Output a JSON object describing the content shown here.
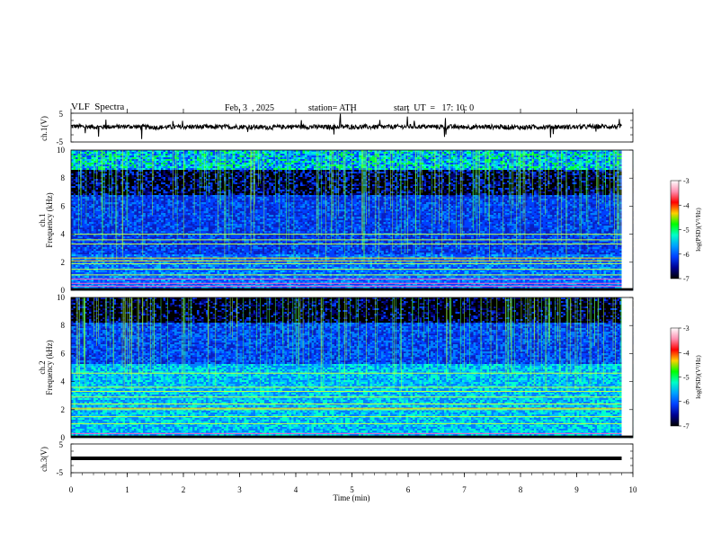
{
  "header": {
    "title": "VLF  Spectra",
    "date": "Feb. 3  , 2025",
    "station": "station= ATH",
    "start_time": "start  UT  =   17: 10: 0"
  },
  "colorbar": {
    "label": "log(PSD)(V²/Hz)",
    "ticks": [
      "-3",
      "-4",
      "-5",
      "-6",
      "-7"
    ],
    "colors": [
      "#ffffff",
      "#ff8fb0",
      "#ff0000",
      "#ffd000",
      "#00ff00",
      "#00ffc8",
      "#00a0ff",
      "#0040ff",
      "#000090",
      "#000000"
    ]
  },
  "chart_data": [
    {
      "type": "line",
      "panel": "ch1-timeseries",
      "ylabel": "ch.1(V)",
      "ylim": [
        -5,
        5
      ],
      "ytick_labels": [
        "5",
        "-5"
      ],
      "x": [
        0,
        0.5,
        1,
        1.5,
        2,
        2.5,
        3,
        3.5,
        4,
        4.5,
        5,
        5.5,
        6,
        6.5,
        7,
        7.5,
        8,
        8.5,
        9,
        9.5,
        9.8
      ],
      "y": [
        0.5,
        0.2,
        0.4,
        0.1,
        0.3,
        0.2,
        0.3,
        0.1,
        0.4,
        0.2,
        0.3,
        0.2,
        0.4,
        0.3,
        0.2,
        0.3,
        0.1,
        0.3,
        0.2,
        0.4,
        0.3
      ]
    },
    {
      "type": "heatmap",
      "panel": "ch1-spectrogram",
      "ylabel": "ch.1\nFrequency (kHz)",
      "ylim": [
        0,
        10
      ],
      "ytick_labels": [
        "10",
        "8",
        "6",
        "4",
        "2",
        "0"
      ],
      "zlim": [
        -7,
        -3
      ],
      "bands_khz": [
        0.3,
        0.5,
        0.8,
        1.1,
        1.5,
        1.9,
        2.1,
        2.3,
        3.3,
        3.6,
        4.0
      ]
    },
    {
      "type": "heatmap",
      "panel": "ch2-spectrogram",
      "ylabel": "ch.2\nFrequency (kHz)",
      "ylim": [
        0,
        10
      ],
      "ytick_labels": [
        "10",
        "8",
        "6",
        "4",
        "2",
        "0"
      ],
      "zlim": [
        -7,
        -3
      ],
      "bands_khz": [
        0.3,
        1.0,
        1.5,
        2.0,
        2.1,
        2.4,
        2.9,
        3.3,
        3.6,
        4.6
      ]
    },
    {
      "type": "line",
      "panel": "ch3-timeseries",
      "ylabel": "ch.3(V)",
      "ylim": [
        -5,
        5
      ],
      "ytick_labels": [
        "5",
        "-5"
      ],
      "x": [
        0,
        9.8
      ],
      "y": [
        0,
        0
      ]
    }
  ],
  "xaxis": {
    "label": "Time  (min)",
    "xlim": [
      0,
      10
    ],
    "tick_labels": [
      "0",
      "1",
      "2",
      "3",
      "4",
      "5",
      "6",
      "7",
      "8",
      "9",
      "10"
    ]
  }
}
